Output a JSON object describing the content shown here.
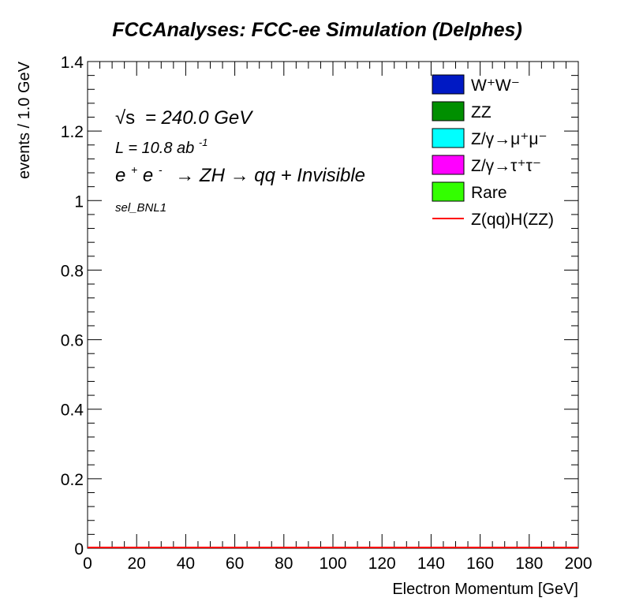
{
  "chart_data": {
    "type": "bar",
    "title": "FCCAnalyses: FCC-ee Simulation (Delphes)",
    "xlabel": "Electron Momentum [GeV]",
    "ylabel": "events / 1.0 GeV",
    "xlim": [
      0,
      200
    ],
    "ylim": [
      0,
      1.4
    ],
    "x_ticks": [
      "0",
      "20",
      "40",
      "60",
      "80",
      "100",
      "120",
      "140",
      "160",
      "180",
      "200"
    ],
    "y_ticks": [
      "0",
      "0.2",
      "0.4",
      "0.6",
      "0.8",
      "1",
      "1.2",
      "1.4"
    ],
    "grid": false,
    "legend_position": "top-right",
    "annotations": {
      "energy_sqrt": "√s",
      "energy_value": "= 240.0 GeV",
      "lumi_prefix": "L = 10.8 ab",
      "lumi_exp": "-1",
      "process_e1": "e",
      "process_sup1": "+",
      "process_e2": "e",
      "process_sup2": "-",
      "process_rest": "→ ZH → qq + Invisible",
      "selection": "sel_BNL1"
    },
    "series": [
      {
        "name": "W⁺W⁻",
        "kind": "stacked-fill",
        "color": "#0019c4",
        "values": [
          0
        ]
      },
      {
        "name": "ZZ",
        "kind": "stacked-fill",
        "color": "#008f00",
        "values": [
          0
        ]
      },
      {
        "name": "Z/γ→μ⁺μ⁻",
        "kind": "stacked-fill",
        "color": "#00ffff",
        "values": [
          0
        ]
      },
      {
        "name": "Z/γ→τ⁺τ⁻",
        "kind": "stacked-fill",
        "color": "#ff00ff",
        "values": [
          0
        ]
      },
      {
        "name": "Rare",
        "kind": "stacked-fill",
        "color": "#33ff00",
        "values": [
          0
        ]
      },
      {
        "name": "Z(qq)H(ZZ)",
        "kind": "line",
        "color": "#ff0000",
        "values": [
          0
        ]
      }
    ]
  }
}
